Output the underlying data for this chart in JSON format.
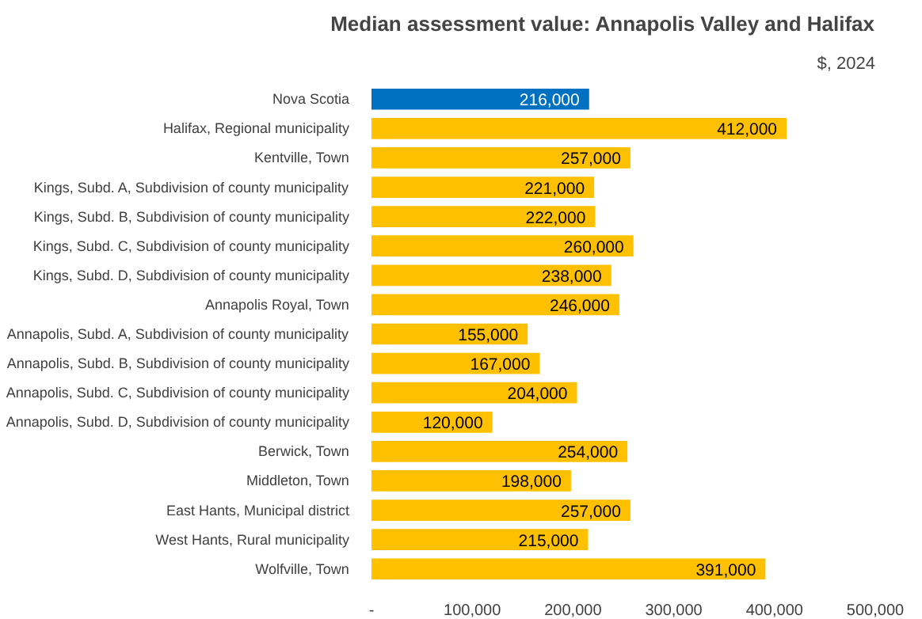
{
  "chart_data": {
    "type": "bar",
    "orientation": "horizontal",
    "title": "Median assessment value: Annapolis Valley and Halifax",
    "subtitle": "$, 2024",
    "categories": [
      "Nova Scotia",
      "Halifax, Regional municipality",
      "Kentville, Town",
      "Kings, Subd. A, Subdivision of county municipality",
      "Kings, Subd. B, Subdivision of county municipality",
      "Kings, Subd. C, Subdivision of county municipality",
      "Kings, Subd. D, Subdivision of county municipality",
      "Annapolis Royal, Town",
      "Annapolis, Subd. A, Subdivision of county municipality",
      "Annapolis, Subd. B, Subdivision of county municipality",
      "Annapolis, Subd. C, Subdivision of county municipality",
      "Annapolis, Subd. D, Subdivision of county municipality",
      "Berwick, Town",
      "Middleton, Town",
      "East Hants, Municipal district",
      "West Hants, Rural municipality",
      "Wolfville, Town"
    ],
    "values": [
      216000,
      412000,
      257000,
      221000,
      222000,
      260000,
      238000,
      246000,
      155000,
      167000,
      204000,
      120000,
      254000,
      198000,
      257000,
      215000,
      391000
    ],
    "colors": [
      "#0070c0",
      "#ffc000",
      "#ffc000",
      "#ffc000",
      "#ffc000",
      "#ffc000",
      "#ffc000",
      "#ffc000",
      "#ffc000",
      "#ffc000",
      "#ffc000",
      "#ffc000",
      "#ffc000",
      "#ffc000",
      "#ffc000",
      "#ffc000",
      "#ffc000"
    ],
    "value_labels": [
      "216,000",
      "412,000",
      "257,000",
      "221,000",
      "222,000",
      "260,000",
      "238,000",
      "246,000",
      "155,000",
      "167,000",
      "204,000",
      "120,000",
      "254,000",
      "198,000",
      "257,000",
      "215,000",
      "391,000"
    ],
    "xlim": [
      0,
      500000
    ],
    "xticks": [
      {
        "value": 0,
        "label": "-"
      },
      {
        "value": 100000,
        "label": "100,000"
      },
      {
        "value": 200000,
        "label": "200,000"
      },
      {
        "value": 300000,
        "label": "300,000"
      },
      {
        "value": 400000,
        "label": "400,000"
      },
      {
        "value": 500000,
        "label": "500,000"
      }
    ],
    "grid": false
  }
}
